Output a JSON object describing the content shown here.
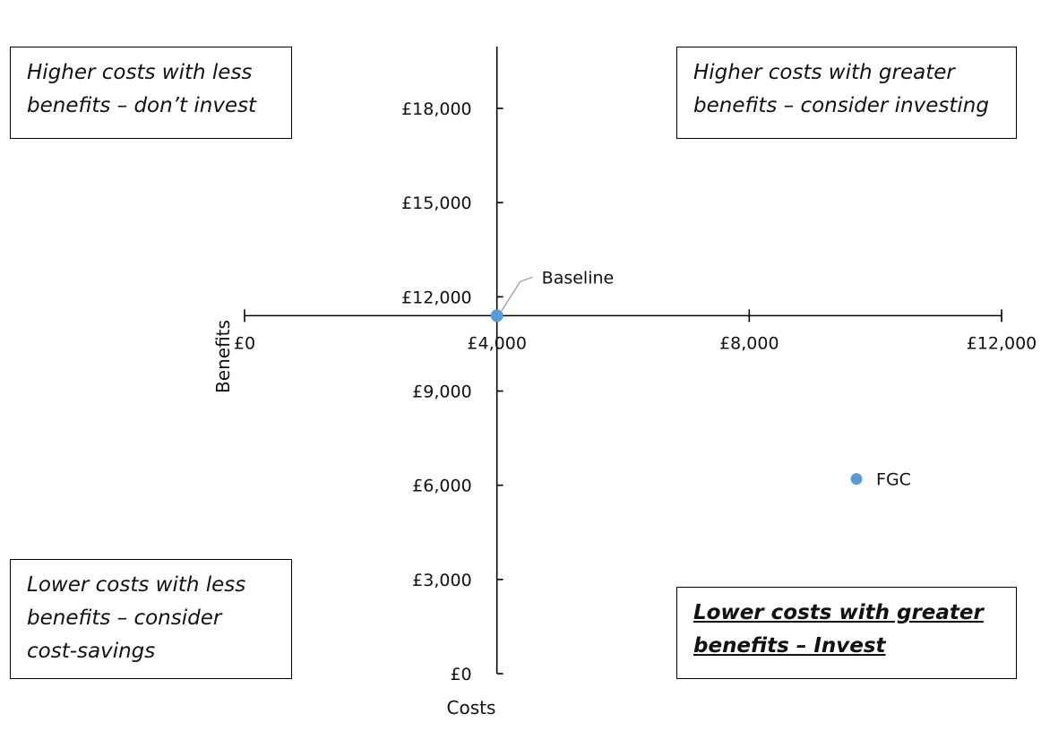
{
  "chart_data": {
    "type": "scatter",
    "xlabel": "Costs",
    "ylabel": "Benefits",
    "xlim": [
      0,
      12000
    ],
    "ylim": [
      0,
      18000
    ],
    "x_ticks": [
      0,
      4000,
      8000,
      12000
    ],
    "x_tick_labels": [
      "£0",
      "£4,000",
      "£8,000",
      "£12,000"
    ],
    "y_ticks": [
      0,
      3000,
      6000,
      9000,
      12000,
      15000,
      18000
    ],
    "y_tick_labels": [
      "£0",
      "£3,000",
      "£6,000",
      "£9,000",
      "£12,000",
      "£15,000",
      "£18,000"
    ],
    "x_axis_crosses_y_at": 11400,
    "y_axis_crosses_x_at": 4000,
    "grid": false,
    "point_color": "#5b9bd5",
    "points": [
      {
        "label": "Baseline",
        "x": 4000,
        "y": 11400
      },
      {
        "label": "FGC",
        "x": 9700,
        "y": 6200
      }
    ],
    "quadrant_notes": {
      "top_left": [
        "Higher costs with less",
        "benefits – don’t invest"
      ],
      "top_right": [
        "Higher costs with greater",
        "benefits – consider investing"
      ],
      "bottom_left": [
        "Lower costs with less",
        "benefits – consider",
        "cost-savings"
      ],
      "bottom_right": [
        "Lower costs with greater",
        "benefits – Invest"
      ]
    }
  }
}
